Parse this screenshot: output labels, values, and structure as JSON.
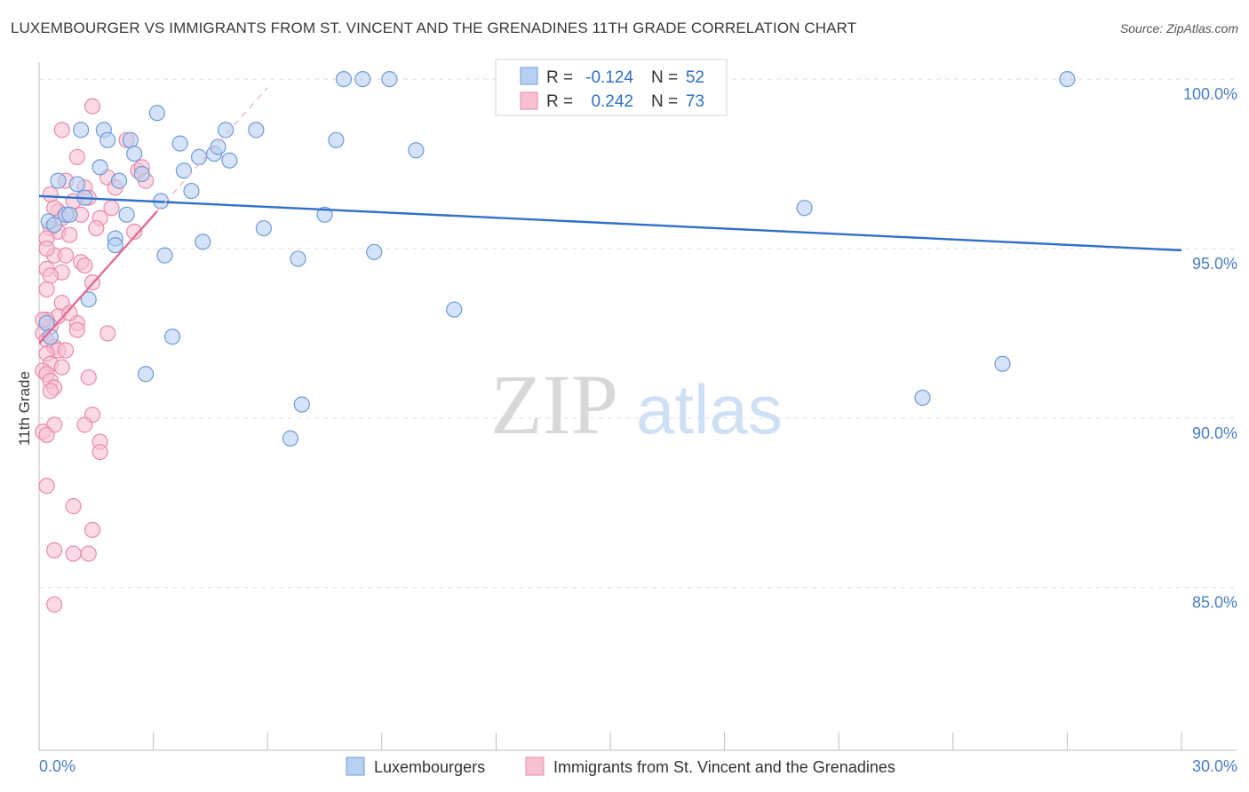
{
  "header": {
    "title": "LUXEMBOURGER VS IMMIGRANTS FROM ST. VINCENT AND THE GRENADINES 11TH GRADE CORRELATION CHART",
    "source": "Source: ZipAtlas.com"
  },
  "watermark": {
    "zip": "ZIP",
    "atlas": "atlas"
  },
  "legend": {
    "r_label": "R =",
    "n_label": "N =",
    "rows": [
      {
        "r": "-0.124",
        "n": "52"
      },
      {
        "r": "0.242",
        "n": "73"
      }
    ]
  },
  "colors": {
    "blue_fill": "#b8d0f2",
    "blue_stroke": "#6f9ad8",
    "blue_line": "#2f6fc9",
    "pink_fill": "#f7c1d2",
    "pink_stroke": "#e98aa8",
    "pink_line": "#e36a94",
    "grid": "#dcdcdc",
    "axis_text": "#4a7cc7"
  },
  "chart_data": {
    "type": "scatter",
    "ylabel": "11th Grade",
    "xlim": [
      0,
      30
    ],
    "ylim": [
      80.2,
      100.5
    ],
    "x_tick_labels": [
      {
        "value": 0,
        "label": "0.0%"
      },
      {
        "value": 30,
        "label": "30.0%"
      }
    ],
    "y_tick_labels": [
      {
        "value": 100,
        "label": "100.0%"
      },
      {
        "value": 95,
        "label": "95.0%"
      },
      {
        "value": 90,
        "label": "90.0%"
      },
      {
        "value": 85,
        "label": "85.0%"
      }
    ],
    "series": [
      {
        "name": "Luxembourgers",
        "color": "blue",
        "trend": {
          "x": [
            0,
            30
          ],
          "y": [
            96.55,
            94.95
          ]
        },
        "points": [
          [
            0.25,
            95.8
          ],
          [
            0.4,
            95.7
          ],
          [
            0.5,
            97.0
          ],
          [
            0.7,
            96.0
          ],
          [
            0.8,
            96.0
          ],
          [
            1.0,
            96.9
          ],
          [
            1.2,
            96.5
          ],
          [
            1.1,
            98.5
          ],
          [
            1.7,
            98.5
          ],
          [
            1.8,
            98.2
          ],
          [
            1.6,
            97.4
          ],
          [
            2.1,
            97.0
          ],
          [
            2.3,
            96.0
          ],
          [
            2.4,
            98.2
          ],
          [
            2.5,
            97.8
          ],
          [
            2.7,
            97.2
          ],
          [
            3.1,
            99.0
          ],
          [
            3.2,
            96.4
          ],
          [
            3.7,
            98.1
          ],
          [
            3.8,
            97.3
          ],
          [
            4.0,
            96.7
          ],
          [
            4.2,
            97.7
          ],
          [
            4.6,
            97.8
          ],
          [
            4.7,
            98.0
          ],
          [
            4.9,
            98.5
          ],
          [
            5.0,
            97.6
          ],
          [
            5.7,
            98.5
          ],
          [
            8.0,
            100.0
          ],
          [
            8.5,
            100.0
          ],
          [
            9.2,
            100.0
          ],
          [
            7.8,
            98.2
          ],
          [
            9.9,
            97.9
          ],
          [
            1.3,
            93.5
          ],
          [
            2.0,
            95.3
          ],
          [
            2.0,
            95.1
          ],
          [
            3.3,
            94.8
          ],
          [
            4.3,
            95.2
          ],
          [
            5.9,
            95.6
          ],
          [
            6.8,
            94.7
          ],
          [
            7.5,
            96.0
          ],
          [
            8.8,
            94.9
          ],
          [
            3.5,
            92.4
          ],
          [
            2.8,
            91.3
          ],
          [
            6.9,
            90.4
          ],
          [
            6.6,
            89.4
          ],
          [
            10.9,
            93.2
          ],
          [
            20.1,
            96.2
          ],
          [
            27.0,
            100.0
          ],
          [
            25.3,
            91.6
          ],
          [
            23.2,
            90.6
          ],
          [
            0.2,
            92.8
          ],
          [
            0.3,
            92.4
          ]
        ]
      },
      {
        "name": "Immigrants from St. Vincent and the Grenadines",
        "color": "pink",
        "trend": {
          "x": [
            0,
            3.1
          ],
          "y": [
            92.2,
            96.1
          ]
        },
        "points": [
          [
            1.4,
            99.2
          ],
          [
            0.6,
            98.5
          ],
          [
            2.3,
            98.2
          ],
          [
            1.0,
            97.7
          ],
          [
            2.6,
            97.3
          ],
          [
            2.8,
            97.0
          ],
          [
            1.8,
            97.1
          ],
          [
            0.7,
            97.0
          ],
          [
            1.2,
            96.8
          ],
          [
            0.3,
            96.6
          ],
          [
            0.9,
            96.4
          ],
          [
            1.3,
            96.5
          ],
          [
            0.5,
            96.1
          ],
          [
            0.6,
            95.9
          ],
          [
            1.6,
            95.9
          ],
          [
            0.3,
            95.6
          ],
          [
            0.5,
            95.5
          ],
          [
            0.8,
            95.4
          ],
          [
            1.5,
            95.6
          ],
          [
            2.5,
            95.5
          ],
          [
            0.4,
            94.8
          ],
          [
            0.7,
            94.8
          ],
          [
            1.1,
            94.6
          ],
          [
            1.2,
            94.5
          ],
          [
            0.2,
            94.4
          ],
          [
            0.6,
            94.3
          ],
          [
            0.3,
            94.2
          ],
          [
            1.4,
            94.0
          ],
          [
            0.2,
            93.8
          ],
          [
            0.6,
            93.4
          ],
          [
            0.5,
            93.0
          ],
          [
            0.2,
            92.9
          ],
          [
            1.0,
            92.8
          ],
          [
            0.3,
            92.7
          ],
          [
            1.0,
            92.6
          ],
          [
            1.8,
            92.5
          ],
          [
            0.1,
            92.5
          ],
          [
            0.2,
            92.3
          ],
          [
            0.4,
            92.1
          ],
          [
            0.5,
            92.0
          ],
          [
            0.7,
            92.0
          ],
          [
            0.2,
            91.9
          ],
          [
            0.3,
            91.6
          ],
          [
            0.6,
            91.5
          ],
          [
            0.1,
            91.4
          ],
          [
            0.2,
            91.3
          ],
          [
            1.3,
            91.2
          ],
          [
            0.3,
            91.1
          ],
          [
            0.4,
            90.9
          ],
          [
            1.4,
            90.1
          ],
          [
            0.4,
            89.8
          ],
          [
            1.2,
            89.8
          ],
          [
            0.1,
            89.6
          ],
          [
            0.2,
            89.5
          ],
          [
            1.6,
            89.3
          ],
          [
            1.6,
            89.0
          ],
          [
            0.2,
            88.0
          ],
          [
            0.9,
            87.4
          ],
          [
            1.4,
            86.7
          ],
          [
            0.4,
            86.1
          ],
          [
            0.9,
            86.0
          ],
          [
            1.3,
            86.0
          ],
          [
            0.4,
            84.5
          ],
          [
            0.1,
            92.9
          ],
          [
            0.2,
            95.3
          ],
          [
            0.8,
            93.1
          ],
          [
            1.1,
            96.0
          ],
          [
            0.4,
            96.2
          ],
          [
            0.2,
            95.0
          ],
          [
            2.0,
            96.8
          ],
          [
            1.9,
            96.2
          ],
          [
            2.7,
            97.4
          ],
          [
            0.3,
            90.8
          ]
        ]
      }
    ]
  }
}
